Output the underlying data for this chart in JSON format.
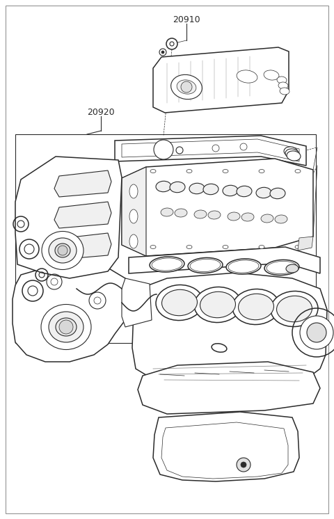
{
  "bg_color": "#ffffff",
  "line_color": "#2a2a2a",
  "label_20910": "20910",
  "label_20920": "20920",
  "fig_width": 4.8,
  "fig_height": 7.46,
  "dpi": 100
}
